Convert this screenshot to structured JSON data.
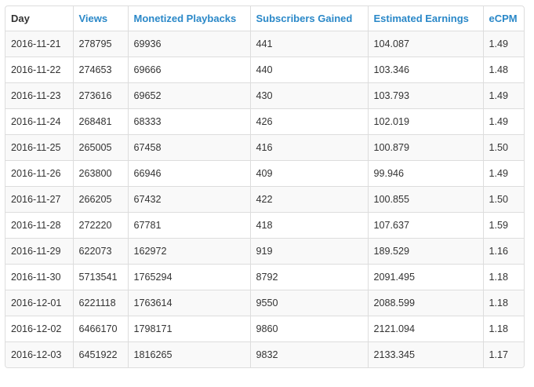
{
  "table": {
    "columns": [
      "Day",
      "Views",
      "Monetized Playbacks",
      "Subscribers Gained",
      "Estimated Earnings",
      "eCPM"
    ],
    "rows": [
      [
        "2016-11-21",
        "278795",
        "69936",
        "441",
        "104.087",
        "1.49"
      ],
      [
        "2016-11-22",
        "274653",
        "69666",
        "440",
        "103.346",
        "1.48"
      ],
      [
        "2016-11-23",
        "273616",
        "69652",
        "430",
        "103.793",
        "1.49"
      ],
      [
        "2016-11-24",
        "268481",
        "68333",
        "426",
        "102.019",
        "1.49"
      ],
      [
        "2016-11-25",
        "265005",
        "67458",
        "416",
        "100.879",
        "1.50"
      ],
      [
        "2016-11-26",
        "263800",
        "66946",
        "409",
        "99.946",
        "1.49"
      ],
      [
        "2016-11-27",
        "266205",
        "67432",
        "422",
        "100.855",
        "1.50"
      ],
      [
        "2016-11-28",
        "272220",
        "67781",
        "418",
        "107.637",
        "1.59"
      ],
      [
        "2016-11-29",
        "622073",
        "162972",
        "919",
        "189.529",
        "1.16"
      ],
      [
        "2016-11-30",
        "5713541",
        "1765294",
        "8792",
        "2091.495",
        "1.18"
      ],
      [
        "2016-12-01",
        "6221118",
        "1763614",
        "9550",
        "2088.599",
        "1.18"
      ],
      [
        "2016-12-02",
        "6466170",
        "1798171",
        "9860",
        "2121.094",
        "1.18"
      ],
      [
        "2016-12-03",
        "6451922",
        "1816265",
        "9832",
        "2133.345",
        "1.17"
      ]
    ]
  },
  "colors": {
    "link": "#2a88c8",
    "text": "#333333",
    "border": "#dddddd",
    "stripe": "#f9f9f9"
  }
}
